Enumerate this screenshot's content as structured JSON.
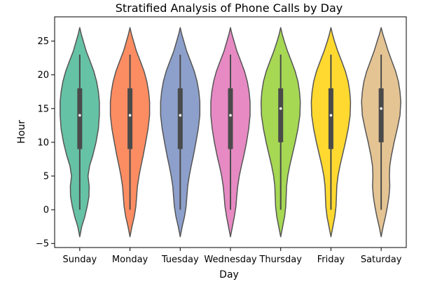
{
  "chart_data": {
    "type": "violin",
    "title": "Stratified Analysis of Phone Calls by Day",
    "xlabel": "Day",
    "ylabel": "Hour",
    "ylim": [
      -5.6,
      28.6
    ],
    "yticks": [
      -5,
      0,
      5,
      10,
      15,
      20,
      25
    ],
    "categories": [
      "Sunday",
      "Monday",
      "Tuesday",
      "Wednesday",
      "Thursday",
      "Friday",
      "Saturday"
    ],
    "colors": [
      "#66c2a5",
      "#fc8d62",
      "#8da0cb",
      "#e78ac3",
      "#a6d854",
      "#ffd92f",
      "#e5c494"
    ],
    "grid": false,
    "series": [
      {
        "category": "Sunday",
        "q1": 9,
        "median": 14,
        "q3": 18,
        "whisker_low": 0,
        "whisker_high": 23,
        "kde_min": -4,
        "kde_max": 27,
        "profile": [
          [
            -4,
            0
          ],
          [
            -2.5,
            0.1
          ],
          [
            -1,
            0.26
          ],
          [
            0.5,
            0.38
          ],
          [
            2,
            0.47
          ],
          [
            3.5,
            0.48
          ],
          [
            5,
            0.42
          ],
          [
            6.5,
            0.5
          ],
          [
            8,
            0.66
          ],
          [
            10,
            0.83
          ],
          [
            12,
            0.95
          ],
          [
            14,
            1.0
          ],
          [
            16,
            1.0
          ],
          [
            17.5,
            0.95
          ],
          [
            19,
            0.86
          ],
          [
            20.5,
            0.72
          ],
          [
            22,
            0.53
          ],
          [
            23.5,
            0.33
          ],
          [
            25,
            0.18
          ],
          [
            26,
            0.08
          ],
          [
            27,
            0
          ]
        ]
      },
      {
        "category": "Monday",
        "q1": 9,
        "median": 14,
        "q3": 18,
        "whisker_low": 0,
        "whisker_high": 23,
        "kde_min": -4,
        "kde_max": 27,
        "profile": [
          [
            -4,
            0
          ],
          [
            -2.5,
            0.1
          ],
          [
            -1,
            0.22
          ],
          [
            0.5,
            0.3
          ],
          [
            2,
            0.34
          ],
          [
            3.5,
            0.38
          ],
          [
            5,
            0.46
          ],
          [
            6.5,
            0.56
          ],
          [
            8,
            0.67
          ],
          [
            10,
            0.8
          ],
          [
            12,
            0.92
          ],
          [
            14,
            1.0
          ],
          [
            16,
            1.0
          ],
          [
            17.5,
            0.95
          ],
          [
            19,
            0.86
          ],
          [
            20.5,
            0.72
          ],
          [
            22,
            0.53
          ],
          [
            23.5,
            0.33
          ],
          [
            25,
            0.18
          ],
          [
            26,
            0.08
          ],
          [
            27,
            0
          ]
        ]
      },
      {
        "category": "Tuesday",
        "q1": 9,
        "median": 14,
        "q3": 18,
        "whisker_low": 0,
        "whisker_high": 23,
        "kde_min": -4,
        "kde_max": 27,
        "profile": [
          [
            -4,
            0
          ],
          [
            -2.5,
            0.1
          ],
          [
            -1,
            0.22
          ],
          [
            0.5,
            0.3
          ],
          [
            2,
            0.34
          ],
          [
            3.5,
            0.38
          ],
          [
            5,
            0.46
          ],
          [
            6.5,
            0.56
          ],
          [
            8,
            0.67
          ],
          [
            10,
            0.8
          ],
          [
            12,
            0.92
          ],
          [
            14,
            1.0
          ],
          [
            16,
            1.0
          ],
          [
            17.5,
            0.95
          ],
          [
            19,
            0.86
          ],
          [
            20.5,
            0.72
          ],
          [
            22,
            0.53
          ],
          [
            23.5,
            0.33
          ],
          [
            25,
            0.18
          ],
          [
            26,
            0.08
          ],
          [
            27,
            0
          ]
        ]
      },
      {
        "category": "Wednesday",
        "q1": 9,
        "median": 14,
        "q3": 18,
        "whisker_low": 0,
        "whisker_high": 23,
        "kde_min": -4,
        "kde_max": 27,
        "profile": [
          [
            -4,
            0
          ],
          [
            -2.5,
            0.1
          ],
          [
            -1,
            0.2
          ],
          [
            0.5,
            0.28
          ],
          [
            2,
            0.32
          ],
          [
            3.5,
            0.37
          ],
          [
            5,
            0.45
          ],
          [
            6.5,
            0.56
          ],
          [
            8,
            0.68
          ],
          [
            10,
            0.82
          ],
          [
            12,
            0.93
          ],
          [
            14,
            1.0
          ],
          [
            16,
            1.0
          ],
          [
            17.5,
            0.95
          ],
          [
            19,
            0.86
          ],
          [
            20.5,
            0.72
          ],
          [
            22,
            0.53
          ],
          [
            23.5,
            0.33
          ],
          [
            25,
            0.18
          ],
          [
            26,
            0.08
          ],
          [
            27,
            0
          ]
        ]
      },
      {
        "category": "Thursday",
        "q1": 10,
        "median": 15,
        "q3": 18,
        "whisker_low": 0,
        "whisker_high": 23,
        "kde_min": -4,
        "kde_max": 27,
        "profile": [
          [
            -4,
            0
          ],
          [
            -2.5,
            0.1
          ],
          [
            -1,
            0.2
          ],
          [
            0.5,
            0.26
          ],
          [
            2,
            0.28
          ],
          [
            3.5,
            0.3
          ],
          [
            5,
            0.36
          ],
          [
            6.5,
            0.46
          ],
          [
            8,
            0.58
          ],
          [
            10,
            0.74
          ],
          [
            12,
            0.88
          ],
          [
            14,
            0.98
          ],
          [
            16,
            1.0
          ],
          [
            17.5,
            0.96
          ],
          [
            19,
            0.88
          ],
          [
            20.5,
            0.74
          ],
          [
            22,
            0.55
          ],
          [
            23.5,
            0.35
          ],
          [
            25,
            0.18
          ],
          [
            26,
            0.08
          ],
          [
            27,
            0
          ]
        ]
      },
      {
        "category": "Friday",
        "q1": 9,
        "median": 14,
        "q3": 18,
        "whisker_low": 0,
        "whisker_high": 23,
        "kde_min": -4,
        "kde_max": 27,
        "profile": [
          [
            -4,
            0
          ],
          [
            -2.5,
            0.1
          ],
          [
            -1,
            0.2
          ],
          [
            0.5,
            0.26
          ],
          [
            2,
            0.28
          ],
          [
            3.5,
            0.3
          ],
          [
            5,
            0.36
          ],
          [
            6.5,
            0.46
          ],
          [
            8,
            0.58
          ],
          [
            10,
            0.74
          ],
          [
            12,
            0.88
          ],
          [
            14,
            0.98
          ],
          [
            16,
            1.0
          ],
          [
            17.5,
            0.96
          ],
          [
            19,
            0.88
          ],
          [
            20.5,
            0.74
          ],
          [
            22,
            0.55
          ],
          [
            23.5,
            0.35
          ],
          [
            25,
            0.18
          ],
          [
            26,
            0.08
          ],
          [
            27,
            0
          ]
        ]
      },
      {
        "category": "Saturday",
        "q1": 10,
        "median": 15,
        "q3": 18,
        "whisker_low": 0,
        "whisker_high": 23,
        "kde_min": -4,
        "kde_max": 27,
        "profile": [
          [
            -4,
            0
          ],
          [
            -2.5,
            0.1
          ],
          [
            -1,
            0.22
          ],
          [
            0.5,
            0.32
          ],
          [
            2,
            0.4
          ],
          [
            3.5,
            0.44
          ],
          [
            5,
            0.42
          ],
          [
            6.5,
            0.44
          ],
          [
            8,
            0.52
          ],
          [
            10,
            0.66
          ],
          [
            12,
            0.82
          ],
          [
            14,
            0.96
          ],
          [
            16,
            1.0
          ],
          [
            17.5,
            0.96
          ],
          [
            19,
            0.88
          ],
          [
            20.5,
            0.74
          ],
          [
            22,
            0.55
          ],
          [
            23.5,
            0.36
          ],
          [
            25,
            0.2
          ],
          [
            26,
            0.09
          ],
          [
            27,
            0
          ]
        ]
      }
    ]
  }
}
